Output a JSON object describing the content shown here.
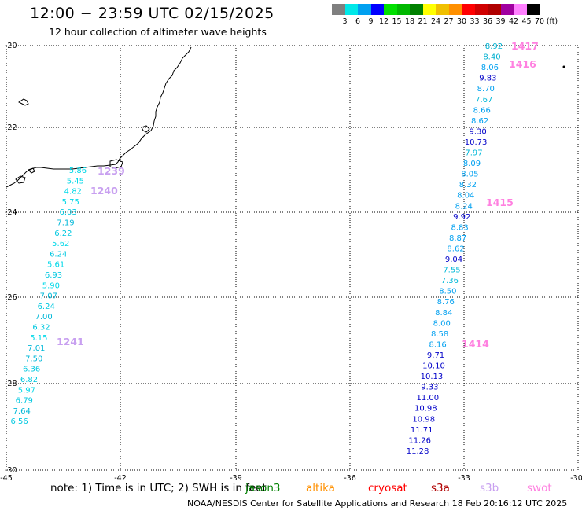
{
  "header": {
    "title": "12:00 − 23:59 UTC 02/15/2025",
    "subtitle": "12 hour collection of altimeter wave heights"
  },
  "scale": {
    "unit": "(ft)",
    "labels": [
      "3",
      "6",
      "9",
      "12",
      "15",
      "18",
      "21",
      "24",
      "27",
      "30",
      "33",
      "36",
      "39",
      "42",
      "45",
      "70"
    ],
    "colors": [
      "#7f7f7f",
      "#00e8e8",
      "#00a0f0",
      "#0000ff",
      "#00e000",
      "#00b800",
      "#008000",
      "#ffff00",
      "#f0c000",
      "#ff9000",
      "#ff0000",
      "#d00000",
      "#b00000",
      "#a000a0",
      "#ff80ff",
      "#000000"
    ]
  },
  "axes": {
    "x_ticks": [
      "-45",
      "-42",
      "-39",
      "-36",
      "-33",
      "-30"
    ],
    "y_ticks": [
      "-20",
      "-22",
      "-24",
      "-26",
      "-28",
      "-30"
    ]
  },
  "passes": [
    {
      "label": "1417",
      "color": "#ff80e0"
    },
    {
      "label": "1416",
      "color": "#ff80e0"
    },
    {
      "label": "1415",
      "color": "#ff80e0"
    },
    {
      "label": "1414",
      "color": "#ff80e0"
    },
    {
      "label": "1240",
      "color": "#c8a0f0"
    },
    {
      "label": "1241",
      "color": "#c8a0f0"
    },
    {
      "label": "1239",
      "color": "#c8a0f0"
    }
  ],
  "track_east": [
    {
      "v": "8.92",
      "c": "#00b0d0"
    },
    {
      "v": "8.40",
      "c": "#00b0d0"
    },
    {
      "v": "8.06",
      "c": "#00a0f0"
    },
    {
      "v": "9.83",
      "c": "#0000c8"
    },
    {
      "v": "8.70",
      "c": "#00a0f0"
    },
    {
      "v": "7.67",
      "c": "#00b8d8"
    },
    {
      "v": "8.66",
      "c": "#00a0f0"
    },
    {
      "v": "8.62",
      "c": "#00a0f0"
    },
    {
      "v": "9.30",
      "c": "#0000c8"
    },
    {
      "v": "10.73",
      "c": "#0000c8"
    },
    {
      "v": "7.97",
      "c": "#00b8d8"
    },
    {
      "v": "8.09",
      "c": "#00a0f0"
    },
    {
      "v": "8.05",
      "c": "#00a0f0"
    },
    {
      "v": "8.32",
      "c": "#00a0f0"
    },
    {
      "v": "8.04",
      "c": "#00a0f0"
    },
    {
      "v": "8.24",
      "c": "#00a0f0"
    },
    {
      "v": "9.92",
      "c": "#0000c8"
    },
    {
      "v": "8.83",
      "c": "#00a0f0"
    },
    {
      "v": "8.87",
      "c": "#00a0f0"
    },
    {
      "v": "8.62",
      "c": "#00a0f0"
    },
    {
      "v": "9.04",
      "c": "#0000c8"
    },
    {
      "v": "7.55",
      "c": "#00b8d8"
    },
    {
      "v": "7.36",
      "c": "#00b8d8"
    },
    {
      "v": "8.50",
      "c": "#00a0f0"
    },
    {
      "v": "8.76",
      "c": "#00a0f0"
    },
    {
      "v": "8.84",
      "c": "#00a0f0"
    },
    {
      "v": "8.00",
      "c": "#00a0f0"
    },
    {
      "v": "8.58",
      "c": "#00a0f0"
    },
    {
      "v": "8.16",
      "c": "#00a0f0"
    },
    {
      "v": "9.71",
      "c": "#0000c8"
    },
    {
      "v": "10.10",
      "c": "#0000c8"
    },
    {
      "v": "10.13",
      "c": "#0000c8"
    },
    {
      "v": "9.33",
      "c": "#0000c8"
    },
    {
      "v": "11.00",
      "c": "#0000c8"
    },
    {
      "v": "10.98",
      "c": "#0000c8"
    },
    {
      "v": "10.98",
      "c": "#0000c8"
    },
    {
      "v": "11.71",
      "c": "#0000c8"
    },
    {
      "v": "11.26",
      "c": "#0000c8"
    },
    {
      "v": "11.28",
      "c": "#0000c8"
    }
  ],
  "track_west": [
    {
      "v": "5.86",
      "c": "#00d8e8"
    },
    {
      "v": "5.45",
      "c": "#00d8e8"
    },
    {
      "v": "4.82",
      "c": "#00d8e8"
    },
    {
      "v": "5.75",
      "c": "#00d8e8"
    },
    {
      "v": "6.03",
      "c": "#00c8e0"
    },
    {
      "v": "7.19",
      "c": "#00b8d8"
    },
    {
      "v": "6.22",
      "c": "#00c8e0"
    },
    {
      "v": "5.62",
      "c": "#00d8e8"
    },
    {
      "v": "6.24",
      "c": "#00c8e0"
    },
    {
      "v": "5.61",
      "c": "#00d8e8"
    },
    {
      "v": "6.93",
      "c": "#00c8e0"
    },
    {
      "v": "5.90",
      "c": "#00d8e8"
    },
    {
      "v": "7.07",
      "c": "#00b8d8"
    },
    {
      "v": "6.24",
      "c": "#00c8e0"
    },
    {
      "v": "7.00",
      "c": "#00b8d8"
    },
    {
      "v": "6.32",
      "c": "#00c8e0"
    },
    {
      "v": "5.15",
      "c": "#00d8e8"
    },
    {
      "v": "7.01",
      "c": "#00b8d8"
    },
    {
      "v": "7.50",
      "c": "#00b8d8"
    },
    {
      "v": "6.36",
      "c": "#00c8e0"
    },
    {
      "v": "6.82",
      "c": "#00c8e0"
    },
    {
      "v": "5.97",
      "c": "#00d8e8"
    },
    {
      "v": "6.79",
      "c": "#00c8e0"
    },
    {
      "v": "7.64",
      "c": "#00b8d8"
    },
    {
      "v": "6.56",
      "c": "#00c8e0"
    }
  ],
  "footer": {
    "note": "note:  1) Time is in UTC;  2) SWH is in feet",
    "missions": [
      {
        "name": "jason3",
        "color": "#008000"
      },
      {
        "name": "altika",
        "color": "#ff9000"
      },
      {
        "name": "cryosat",
        "color": "#ff0000"
      },
      {
        "name": "s3a",
        "color": "#b00000"
      },
      {
        "name": "s3b",
        "color": "#c8a0f0"
      },
      {
        "name": "swot",
        "color": "#ff80e0"
      }
    ],
    "credit": "NOAA/NESDIS Center for Satellite Applications and Research    18 Feb 20:16:12 UTC 2025"
  }
}
